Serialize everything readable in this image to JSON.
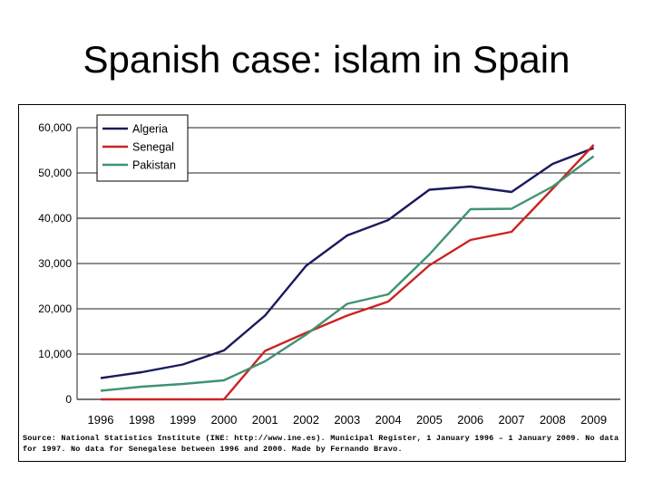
{
  "slide": {
    "title": "Spanish case: islam in Spain"
  },
  "chart_data": {
    "type": "line",
    "title": "",
    "xlabel": "",
    "ylabel": "",
    "categories": [
      "1996",
      "1998",
      "1999",
      "2000",
      "2001",
      "2002",
      "2003",
      "2004",
      "2005",
      "2006",
      "2007",
      "2008",
      "2009"
    ],
    "yticks": [
      "0",
      "10,000",
      "20,000",
      "30,000",
      "40,000",
      "50,000",
      "60,000"
    ],
    "ylim": [
      0,
      60000
    ],
    "grid": "horizontal",
    "legend_position": "top-left",
    "series": [
      {
        "name": "Algeria",
        "color": "#1a1a5e",
        "values": [
          4700,
          6000,
          7700,
          10800,
          18500,
          29500,
          36200,
          39600,
          46300,
          47000,
          45800,
          52000,
          55500
        ]
      },
      {
        "name": "Senegal",
        "color": "#cc2222",
        "values": [
          0,
          0,
          0,
          0,
          10700,
          14700,
          18500,
          21600,
          29600,
          35200,
          37000,
          46500,
          56200
        ]
      },
      {
        "name": "Pakistan",
        "color": "#3e9470",
        "values": [
          1900,
          2800,
          3400,
          4200,
          8400,
          14300,
          21100,
          23200,
          32000,
          42000,
          42100,
          47000,
          53700
        ]
      }
    ],
    "source": "Source: National Statistics Institute (INE: http://www.ine.es). Municipal Register, 1 January 1996 – 1 January 2009. No data for 1997. No data for Senegalese between 1996 and 2000. Made by Fernando Bravo."
  }
}
